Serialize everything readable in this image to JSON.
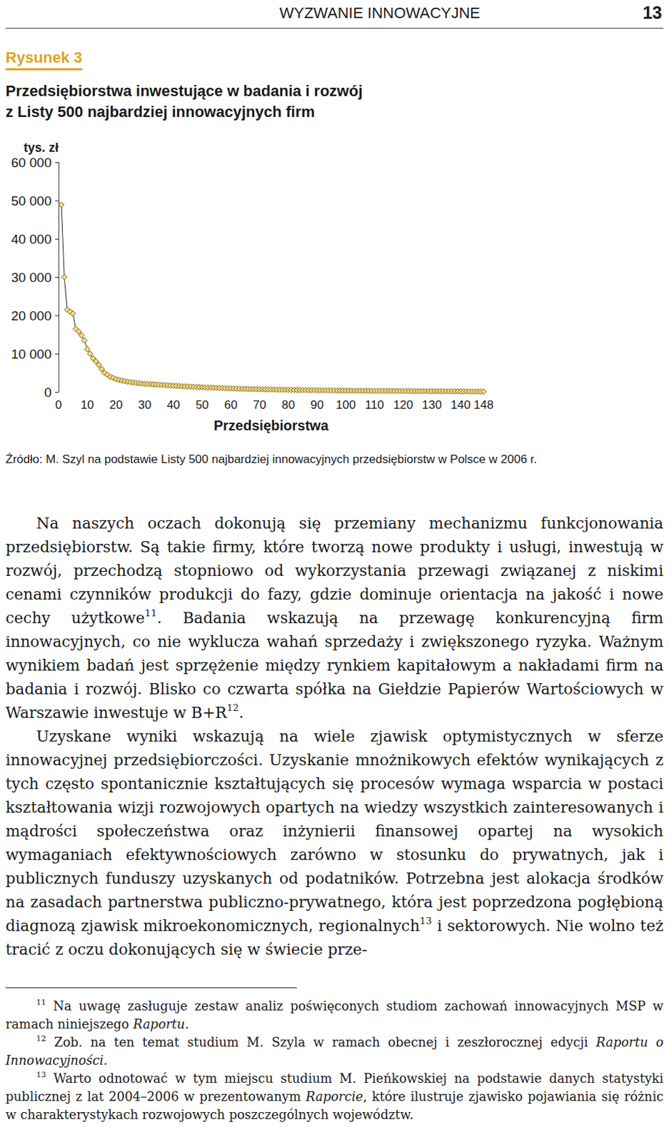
{
  "header": {
    "title": "WYZWANIE INNOWACYJNE",
    "page": "13"
  },
  "figure": {
    "label": "Rysunek 3",
    "title": [
      "Przedsiębiorstwa inwestujące w badania i rozwój",
      "z Listy 500 najbardziej innowacyjnych firm"
    ],
    "source": "Źródło: M. Szyl na podstawie Listy 500 najbardziej innowacyjnych przedsiębiorstw w Polsce w 2006 r."
  },
  "chart_data": {
    "type": "line",
    "x_label": "Przedsiębiorstwa",
    "y_label": "tys. zł",
    "x": [
      1,
      2,
      3,
      4,
      5,
      6,
      7,
      8,
      9,
      10,
      11,
      12,
      13,
      14,
      15,
      16,
      17,
      18,
      19,
      20,
      21,
      22,
      23,
      24,
      25,
      26,
      27,
      28,
      29,
      30,
      31,
      32,
      33,
      34,
      35,
      36,
      37,
      38,
      39,
      40,
      41,
      42,
      43,
      44,
      45,
      46,
      47,
      48,
      49,
      50,
      51,
      52,
      53,
      54,
      55,
      56,
      57,
      58,
      59,
      60,
      61,
      62,
      63,
      64,
      65,
      66,
      67,
      68,
      69,
      70,
      71,
      72,
      73,
      74,
      75,
      76,
      77,
      78,
      79,
      80,
      81,
      82,
      83,
      84,
      85,
      86,
      87,
      88,
      89,
      90,
      91,
      92,
      93,
      94,
      95,
      96,
      97,
      98,
      99,
      100,
      101,
      102,
      103,
      104,
      105,
      106,
      107,
      108,
      109,
      110,
      111,
      112,
      113,
      114,
      115,
      116,
      117,
      118,
      119,
      120,
      121,
      122,
      123,
      124,
      125,
      126,
      127,
      128,
      129,
      130,
      131,
      132,
      133,
      134,
      135,
      136,
      137,
      138,
      139,
      140,
      141,
      142,
      143,
      144,
      145,
      146,
      147,
      148
    ],
    "values": [
      48900,
      30000,
      21500,
      21000,
      20500,
      16500,
      15800,
      14800,
      13500,
      11200,
      10000,
      8800,
      8000,
      7100,
      6000,
      5000,
      4500,
      4000,
      3700,
      3400,
      3200,
      3000,
      2850,
      2700,
      2600,
      2500,
      2400,
      2300,
      2200,
      2150,
      2100,
      2050,
      2000,
      1950,
      1900,
      1850,
      1800,
      1750,
      1700,
      1650,
      1600,
      1560,
      1520,
      1480,
      1440,
      1400,
      1360,
      1320,
      1280,
      1240,
      1200,
      1170,
      1140,
      1110,
      1080,
      1050,
      1020,
      990,
      960,
      930,
      900,
      880,
      860,
      840,
      820,
      800,
      780,
      760,
      740,
      720,
      700,
      685,
      670,
      655,
      640,
      625,
      610,
      595,
      580,
      565,
      550,
      540,
      530,
      520,
      510,
      500,
      490,
      480,
      470,
      460,
      450,
      440,
      430,
      420,
      410,
      400,
      390,
      380,
      370,
      360,
      350,
      345,
      340,
      335,
      330,
      325,
      320,
      315,
      310,
      305,
      300,
      295,
      290,
      285,
      280,
      275,
      270,
      265,
      260,
      255,
      250,
      245,
      240,
      235,
      230,
      225,
      220,
      215,
      210,
      205,
      200,
      195,
      190,
      185,
      180,
      175,
      170,
      165,
      160,
      155,
      150,
      145,
      140,
      135,
      130,
      125,
      120,
      115
    ],
    "xlim": [
      0,
      148
    ],
    "xticks": [
      0,
      10,
      20,
      30,
      40,
      50,
      60,
      70,
      80,
      90,
      100,
      110,
      120,
      130,
      140,
      148
    ],
    "ylim": [
      0,
      60000
    ],
    "yticks": [
      0,
      {
        "value": 10000,
        "label": "10 000"
      },
      {
        "value": 20000,
        "label": "20 000"
      },
      {
        "value": 30000,
        "label": "30 000"
      },
      {
        "value": 40000,
        "label": "40 000"
      },
      {
        "value": 50000,
        "label": "50 000"
      },
      {
        "value": 60000,
        "label": "60 000"
      }
    ],
    "grid": false,
    "color": "#f2dc86",
    "marker": "diamond",
    "line_style": "solid"
  },
  "body": [
    [
      {
        "t": "Na naszych oczach dokonują się przemiany mechanizmu funkcjonowania przedsiębiorstw. Są takie firmy, które tworzą nowe produkty i usługi, inwestują w rozwój, przechodzą stopniowo od wykorzystania przewagi związanej z niskimi cenami czynników produkcji do fazy, gdzie dominuje orientacja na jakość i nowe cechy użytkowe"
      },
      {
        "sup": "11"
      },
      {
        "t": ". Badania wskazują na przewagę konkurencyjną firm innowacyjnych, co nie wyklucza wahań sprzedaży i zwiększonego ryzyka. Ważnym wynikiem badań jest sprzężenie między rynkiem kapitałowym a nakładami firm na badania i rozwój. Blisko co czwarta spółka na Giełdzie Papierów Wartościowych w Warszawie inwestuje w B+R"
      },
      {
        "sup": "12"
      },
      {
        "t": "."
      }
    ],
    [
      {
        "t": "Uzyskane wyniki wskazują na wiele zjawisk optymistycznych w sferze innowacyjnej przedsiębiorczości. Uzyskanie mnożnikowych efektów wynikających z tych często spontanicznie kształtujących się procesów wymaga wsparcia w postaci kształtowania wizji rozwojowych opartych na wiedzy wszystkich zainteresowanych i mądrości społeczeństwa oraz inżynierii finansowej opartej na wysokich wymaganiach efektywnościowych zarówno w stosunku do prywatnych, jak i publicznych funduszy uzyskanych od podatników. Potrzebna jest alokacja środków na zasadach partnerstwa publiczno-prywatnego, która jest poprzedzona pogłębioną diagnozą zjawisk mikroekonomicznych, regionalnych"
      },
      {
        "sup": "13"
      },
      {
        "t": " i sektorowych. Nie wolno też tracić z oczu dokonujących się w świecie prze-"
      }
    ]
  ],
  "footnotes": [
    {
      "number": "11",
      "text": [
        {
          "t": " Na uwagę zasługuje zestaw analiz poświęconych studiom zachowań innowacyjnych MSP w ramach niniejszego "
        },
        {
          "i": "Raportu."
        }
      ]
    },
    {
      "number": "12",
      "text": [
        {
          "t": " Zob. na ten temat studium M. Szyla w ramach obecnej i zeszłorocznej edycji "
        },
        {
          "i": "Raportu o Innowacyjności."
        }
      ]
    },
    {
      "number": "13",
      "text": [
        {
          "t": " Warto odnotować w tym miejscu studium M. Pieńkowskiej na podstawie danych statystyki publicznej z lat 2004–2006 w prezentowanym "
        },
        {
          "i": "Raporcie"
        },
        {
          "t": ", które ilustruje zjawisko pojawiania się różnic w charakterystykach rozwojowych poszczególnych województw."
        }
      ]
    }
  ]
}
